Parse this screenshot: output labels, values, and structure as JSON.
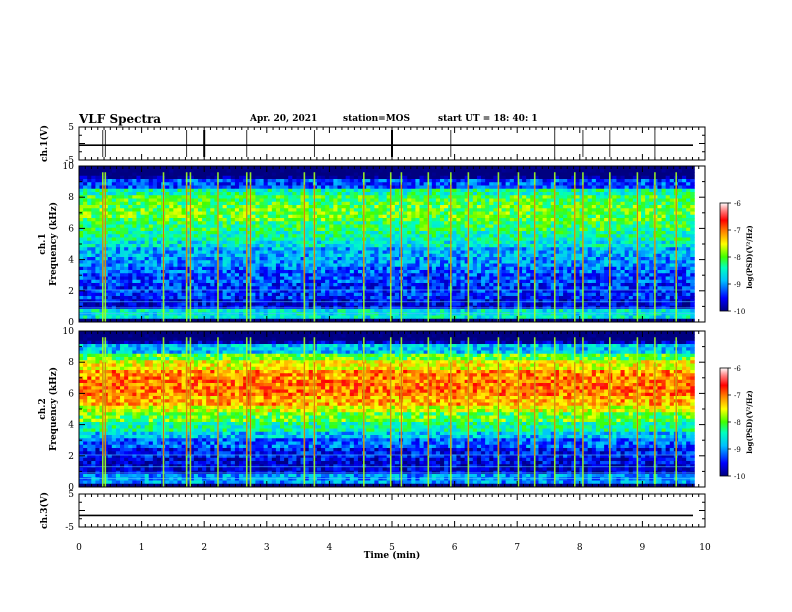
{
  "header": {
    "title": "VLF Spectra",
    "date": "Apr. 20, 2021",
    "station": "station=MOS",
    "start": "start  UT =   18: 40: 1"
  },
  "colors": {
    "colormap": [
      "#000080",
      "#0000ff",
      "#00a0ff",
      "#00ffff",
      "#00ff80",
      "#80ff00",
      "#ffff00",
      "#ff8000",
      "#ff0000",
      "#ff6060",
      "#ffffff"
    ]
  },
  "chart_data": [
    {
      "type": "line",
      "panel": "ch1-waveform",
      "ylabel": "ch.1(V)",
      "ylim": [
        -5,
        5
      ],
      "ytick_labels": [
        "5",
        "-5"
      ],
      "x": [
        0,
        10
      ],
      "values": [
        -0.5,
        -0.5
      ]
    },
    {
      "type": "heatmap",
      "panel": "ch1-spectrogram",
      "ylabel": "ch.1\nFrequency (kHz)",
      "ylim": [
        0,
        10
      ],
      "ytick_labels": [
        "0",
        "2",
        "4",
        "6",
        "8",
        "10"
      ],
      "xlim": [
        0,
        9.83
      ],
      "colorbar": {
        "label": "log(PSD)(V²/Hz)",
        "range": [
          -10,
          -6
        ],
        "tick_labels": [
          "-6",
          "-7",
          "-8",
          "-9",
          "-10"
        ]
      },
      "band_khz": [
        0.3,
        9.4
      ],
      "peak_band_khz": [
        5.5,
        8.8
      ],
      "profile": [
        -9.8,
        -8.6,
        -9.6,
        -9.4,
        -9.4,
        -9.3,
        -9.2,
        -9.0,
        -8.9,
        -8.6,
        -8.4,
        -8.2,
        -8.0,
        -8.0,
        -8.1,
        -8.4,
        -9.3,
        -10.0,
        -10.0
      ],
      "spike_times_min": [
        0.38,
        0.42,
        1.35,
        1.72,
        1.78,
        2.22,
        2.68,
        2.74,
        3.6,
        3.76,
        4.55,
        4.98,
        5.15,
        5.58,
        5.94,
        6.22,
        6.7,
        7.02,
        7.28,
        7.6,
        7.92,
        8.05,
        8.48,
        8.92,
        9.2,
        9.54
      ]
    },
    {
      "type": "heatmap",
      "panel": "ch2-spectrogram",
      "ylabel": "ch.2\nFrequency (kHz)",
      "ylim": [
        0,
        10
      ],
      "ytick_labels": [
        "0",
        "2",
        "4",
        "6",
        "8",
        "10"
      ],
      "xlim": [
        0,
        9.83
      ],
      "colorbar": {
        "label": "log(PSD)(V²/Hz)",
        "range": [
          -10,
          -6
        ],
        "tick_labels": [
          "-6",
          "-7",
          "-8",
          "-9",
          "-10"
        ]
      },
      "band_khz": [
        0.3,
        9.4
      ],
      "peak_band_khz": [
        5.0,
        8.0
      ],
      "profile": [
        -9.8,
        -9.0,
        -9.7,
        -9.6,
        -9.5,
        -9.2,
        -8.8,
        -8.4,
        -8.0,
        -7.6,
        -7.2,
        -7.0,
        -7.0,
        -7.1,
        -7.5,
        -8.0,
        -8.8,
        -9.8,
        -10.0
      ],
      "spike_times_min": [
        0.38,
        0.42,
        1.35,
        1.72,
        1.78,
        2.22,
        2.68,
        2.74,
        3.6,
        3.76,
        4.55,
        4.98,
        5.15,
        5.58,
        5.94,
        6.22,
        6.7,
        7.02,
        7.28,
        7.6,
        7.92,
        8.05,
        8.48,
        8.92,
        9.2,
        9.54
      ]
    },
    {
      "type": "line",
      "panel": "ch3-waveform",
      "ylabel": "ch.3(V)",
      "ylim": [
        -5,
        5
      ],
      "ytick_labels": [
        "5",
        "-5"
      ],
      "x": [
        0,
        10
      ],
      "values": [
        -1.5,
        -1.5
      ]
    }
  ],
  "xaxis": {
    "label": "Time  (min)",
    "range": [
      0,
      10
    ],
    "tick_labels": [
      "0",
      "1",
      "2",
      "3",
      "4",
      "5",
      "6",
      "7",
      "8",
      "9",
      "10"
    ]
  }
}
